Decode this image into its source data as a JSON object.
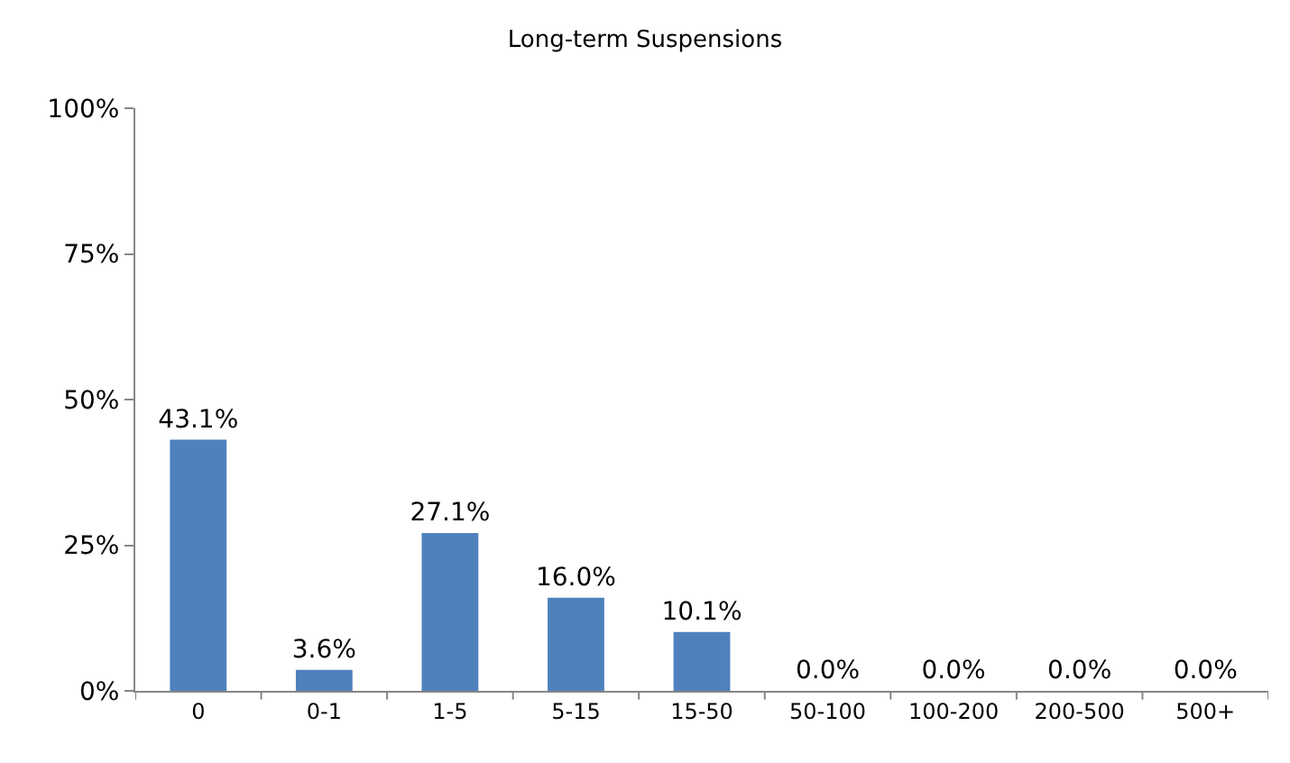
{
  "chart_data": {
    "type": "bar",
    "title": "Long-term Suspensions",
    "categories": [
      "0",
      "0-1",
      "1-5",
      "5-15",
      "15-50",
      "50-100",
      "100-200",
      "200-500",
      "500+"
    ],
    "values": [
      43.1,
      3.6,
      27.1,
      16.0,
      10.1,
      0.0,
      0.0,
      0.0,
      0.0
    ],
    "value_labels": [
      "43.1%",
      "3.6%",
      "27.1%",
      "16.0%",
      "10.1%",
      "0.0%",
      "0.0%",
      "0.0%",
      "0.0%"
    ],
    "color": "#4f81bd",
    "ylim": [
      0,
      100
    ],
    "yticks": [
      {
        "value": 0,
        "label": "0%"
      },
      {
        "value": 25,
        "label": "25%"
      },
      {
        "value": 50,
        "label": "50%"
      },
      {
        "value": 75,
        "label": "75%"
      },
      {
        "value": 100,
        "label": "100%"
      }
    ]
  }
}
